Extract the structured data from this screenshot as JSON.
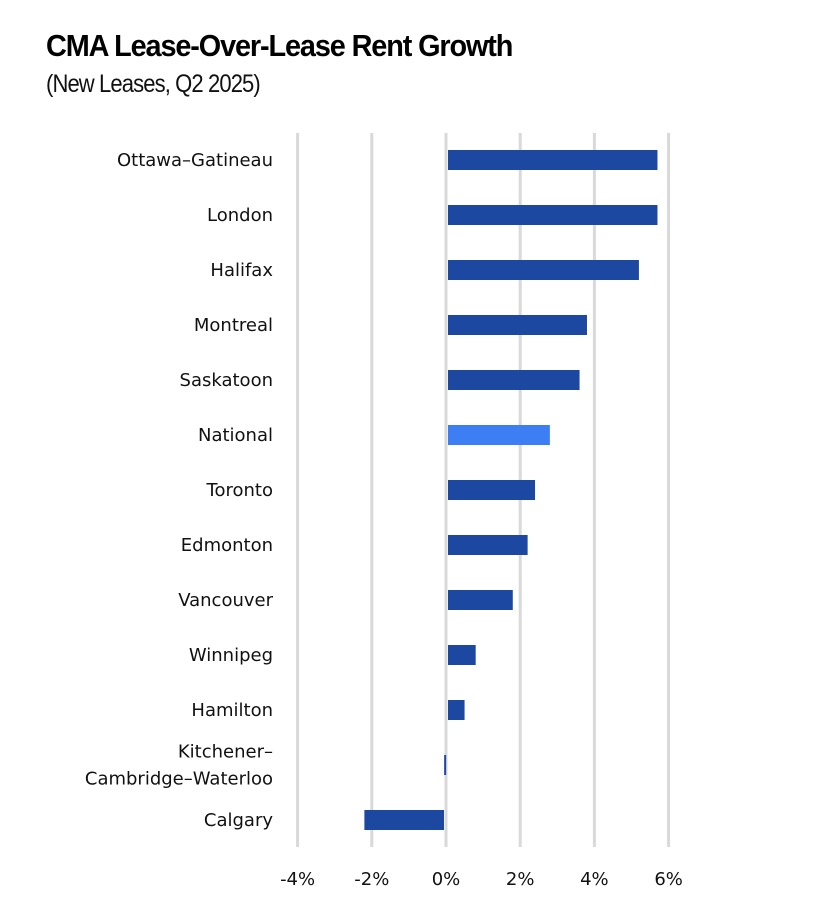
{
  "chart_data": {
    "type": "bar",
    "orientation": "horizontal",
    "title": "CMA Lease-Over-Lease Rent Growth",
    "subtitle": "(New Leases, Q2 2025)",
    "xlabel": "",
    "ylabel": "",
    "xlim": [
      -4,
      6
    ],
    "x_ticks": [
      -4,
      -2,
      0,
      2,
      4,
      6
    ],
    "x_tick_labels": [
      "-4%",
      "-2%",
      "0%",
      "2%",
      "4%",
      "6%"
    ],
    "grid": "vertical",
    "legend": "none",
    "categories": [
      [
        "Ottawa–Gatineau"
      ],
      [
        "London"
      ],
      [
        "Halifax"
      ],
      [
        "Montreal"
      ],
      [
        "Saskatoon"
      ],
      [
        "National"
      ],
      [
        "Toronto"
      ],
      [
        "Edmonton"
      ],
      [
        "Vancouver"
      ],
      [
        "Winnipeg"
      ],
      [
        "Hamilton"
      ],
      [
        "Kitchener–",
        "Cambridge–Waterloo"
      ],
      [
        "Calgary"
      ]
    ],
    "values": [
      5.7,
      5.7,
      5.2,
      3.8,
      3.6,
      2.8,
      2.4,
      2.2,
      1.8,
      0.8,
      0.5,
      -0.05,
      -2.2
    ],
    "highlight_index": 5,
    "colors": {
      "bar": "#1d48a1",
      "highlight": "#3d7ef5",
      "grid": "#d9d9d9"
    }
  }
}
